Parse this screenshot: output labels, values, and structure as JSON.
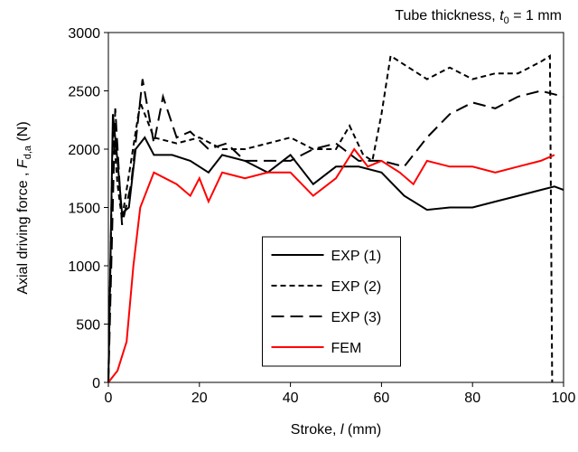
{
  "chart_data": {
    "type": "line",
    "annotation": [
      "Tube thickness, ",
      "t",
      "0",
      " = 1 mm"
    ],
    "x_label": [
      "Stroke, ",
      "l",
      " (mm)"
    ],
    "y_label": [
      "Axial driving force , ",
      "F",
      "d,a",
      " (N)"
    ],
    "xlim": [
      0,
      100
    ],
    "xticks": [
      0,
      20,
      40,
      60,
      80,
      100
    ],
    "ylim": [
      0,
      3000
    ],
    "yticks": [
      0,
      500,
      1000,
      1500,
      2000,
      2500,
      3000
    ],
    "legend": "bottom-center",
    "series": [
      {
        "name": "EXP (1)",
        "color": "#000000",
        "linestyle": "solid",
        "x": [
          0,
          1,
          2,
          3,
          4.5,
          6,
          8,
          10,
          14,
          18,
          22,
          25,
          30,
          35,
          40,
          45,
          50,
          55,
          60,
          65,
          70,
          75,
          80,
          85,
          90,
          95,
          98,
          100
        ],
        "values": [
          0,
          2300,
          1900,
          1450,
          1500,
          2000,
          2100,
          1950,
          1950,
          1900,
          1800,
          1950,
          1900,
          1800,
          1950,
          1700,
          1850,
          1850,
          1800,
          1600,
          1480,
          1500,
          1500,
          1550,
          1600,
          1650,
          1680,
          1650
        ]
      },
      {
        "name": "EXP (2)",
        "color": "#000000",
        "linestyle": "dashed",
        "x": [
          0,
          1,
          2,
          3,
          5,
          7,
          10,
          15,
          20,
          25,
          30,
          35,
          40,
          45,
          50,
          53,
          56,
          58,
          60,
          62,
          66,
          70,
          75,
          80,
          85,
          90,
          95,
          97,
          97.5
        ],
        "values": [
          0,
          2200,
          1700,
          1400,
          1900,
          2400,
          2100,
          2050,
          2100,
          2000,
          2000,
          2050,
          2100,
          2000,
          2000,
          2200,
          1950,
          1900,
          2300,
          2800,
          2700,
          2600,
          2700,
          2600,
          2650,
          2650,
          2750,
          2800,
          0
        ]
      },
      {
        "name": "EXP (3)",
        "color": "#000000",
        "linestyle": "longdash",
        "x": [
          0,
          1.5,
          3,
          5,
          7.5,
          10,
          12,
          15,
          18,
          22,
          26,
          30,
          35,
          40,
          45,
          50,
          55,
          60,
          65,
          70,
          75,
          80,
          85,
          90,
          95,
          100
        ],
        "values": [
          0,
          2350,
          1350,
          1700,
          2600,
          2050,
          2450,
          2100,
          2150,
          2000,
          2050,
          1900,
          1900,
          1900,
          2000,
          2050,
          1900,
          1900,
          1850,
          2100,
          2300,
          2400,
          2350,
          2450,
          2500,
          2450
        ]
      },
      {
        "name": "FEM",
        "color": "#ff0000",
        "linestyle": "solid",
        "x": [
          0,
          2,
          4,
          5.5,
          7,
          10,
          15,
          18,
          20,
          22,
          25,
          30,
          35,
          40,
          45,
          50,
          54,
          57,
          60,
          64,
          67,
          70,
          75,
          80,
          85,
          90,
          95,
          98
        ],
        "values": [
          0,
          100,
          350,
          1000,
          1500,
          1800,
          1700,
          1600,
          1750,
          1550,
          1800,
          1750,
          1800,
          1800,
          1600,
          1750,
          2000,
          1850,
          1900,
          1800,
          1700,
          1900,
          1850,
          1850,
          1800,
          1850,
          1900,
          1950
        ]
      }
    ]
  }
}
